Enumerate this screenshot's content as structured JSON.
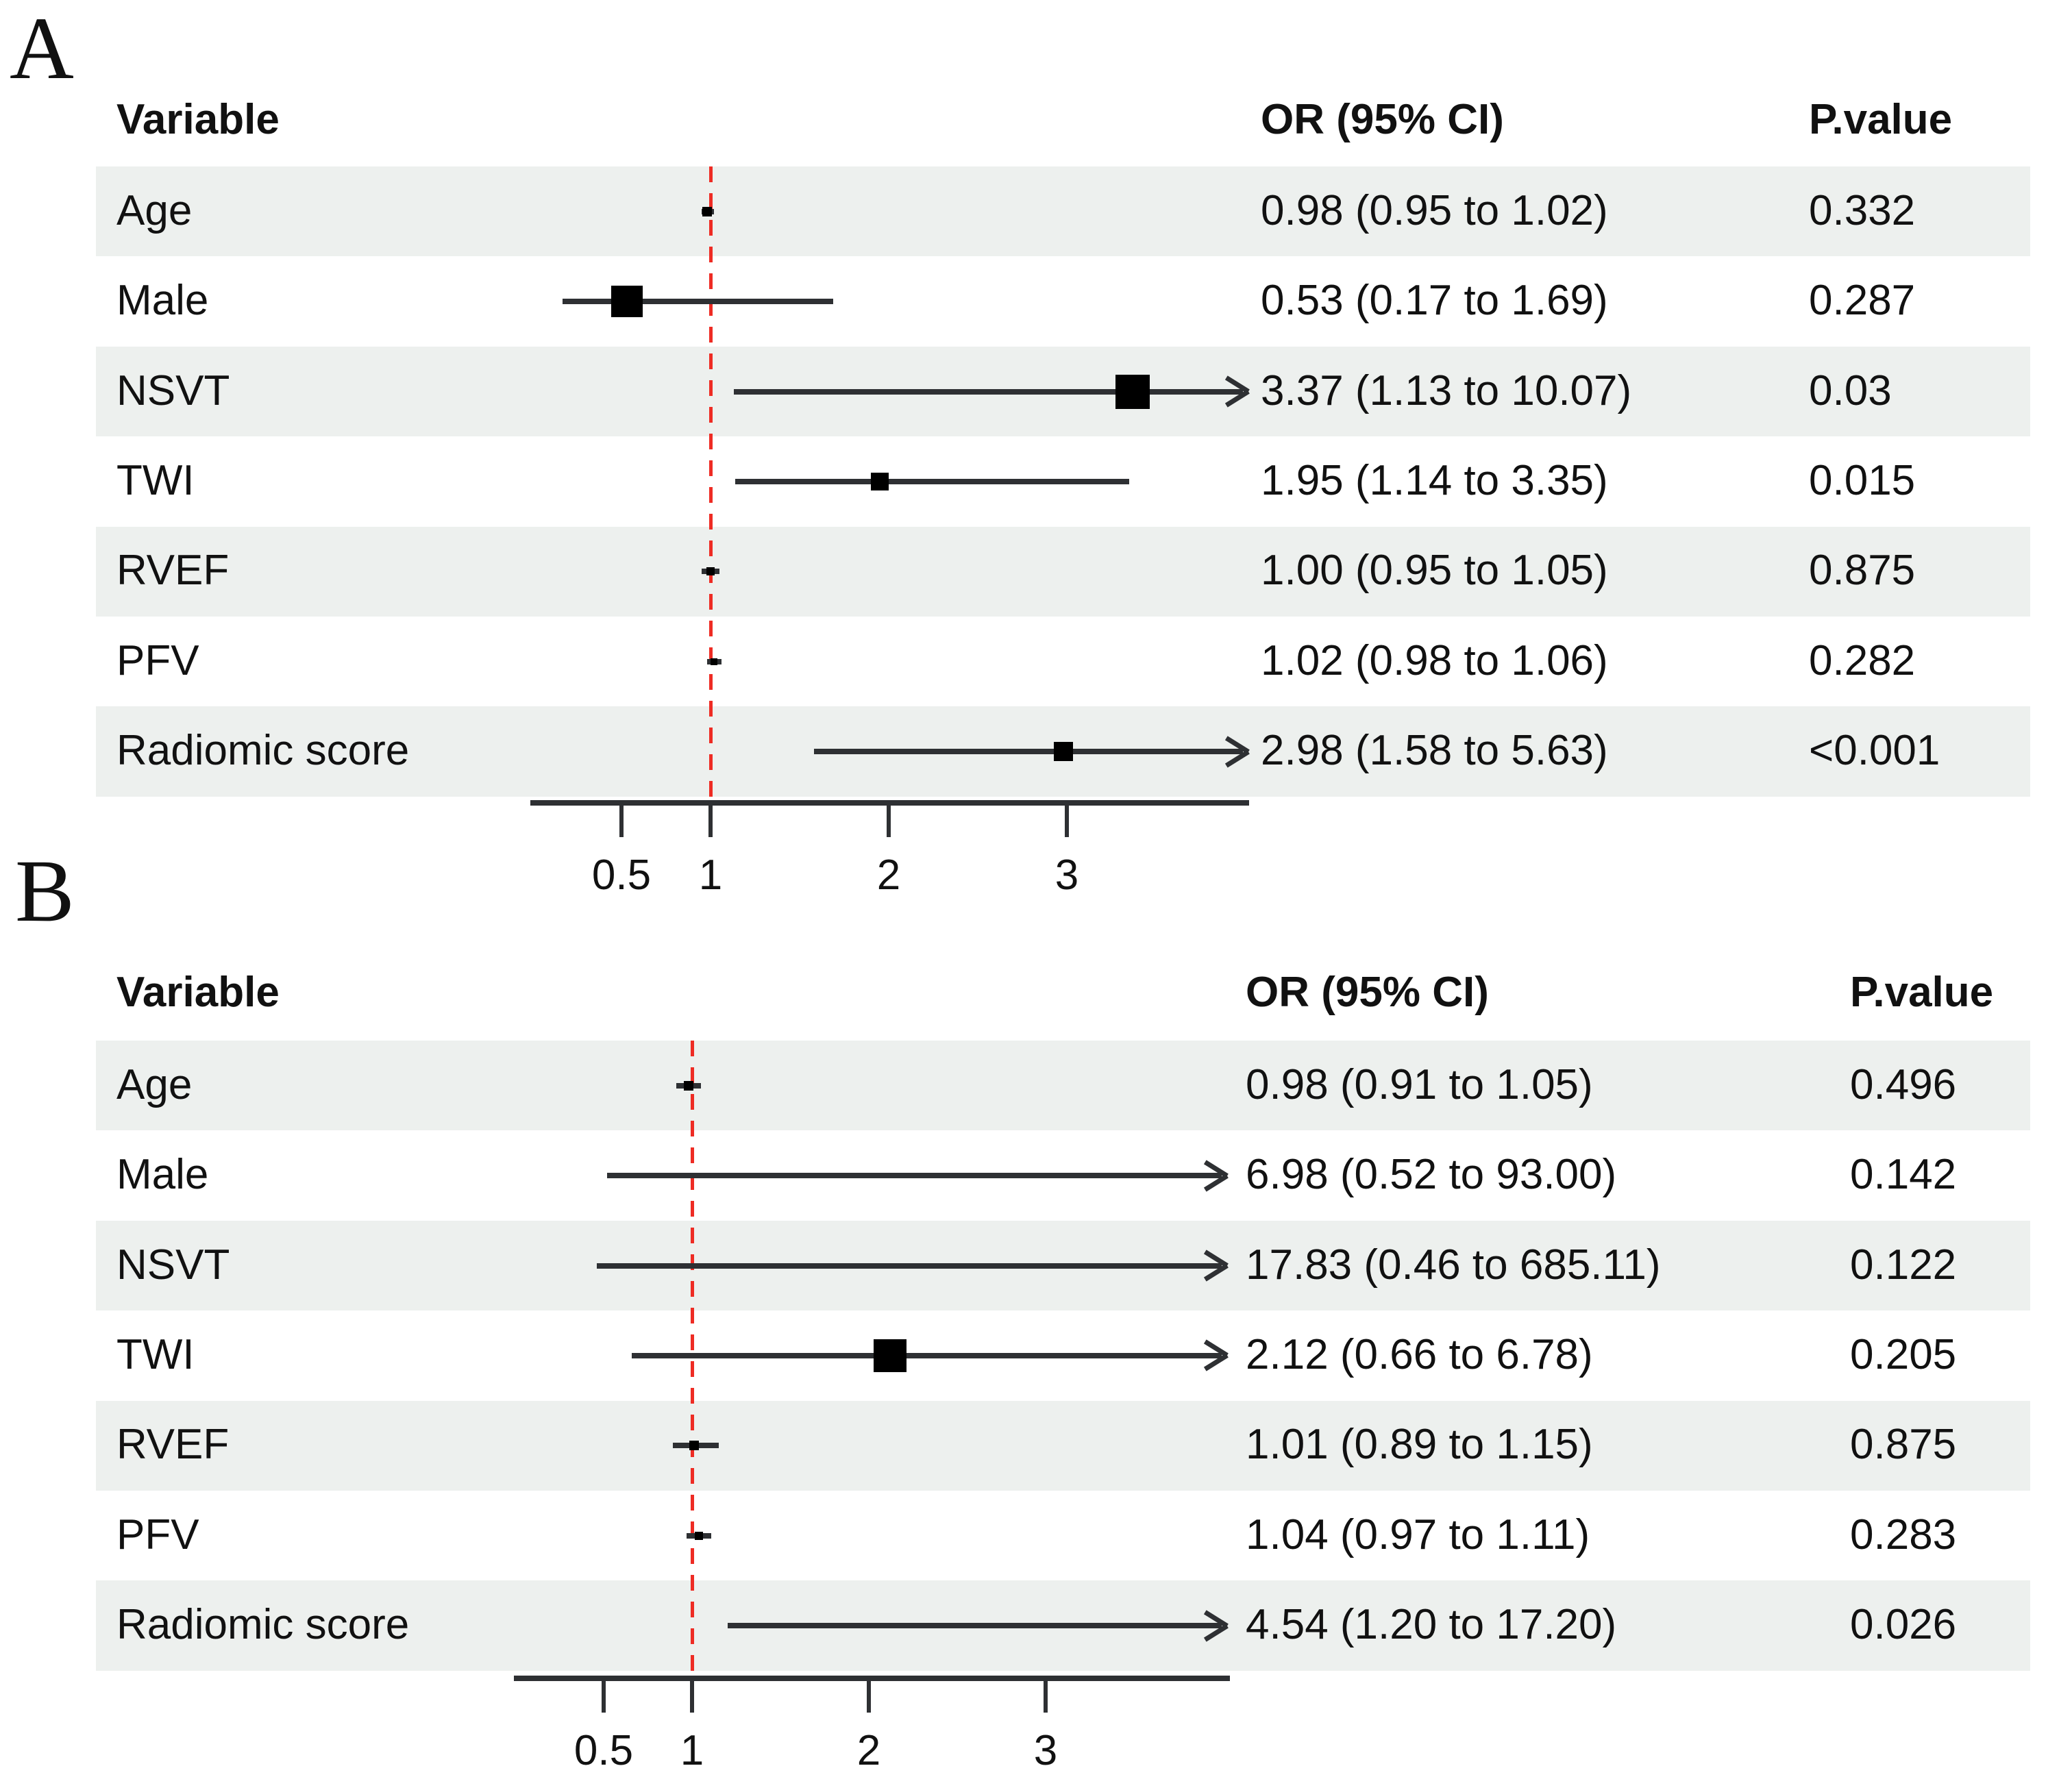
{
  "figure": {
    "background": "#ffffff",
    "stripe_color": "#edf0ee",
    "line_color": "#2e3033",
    "marker_color": "#000000",
    "ref_line_color": "#ee2c24",
    "text_color": "#111111"
  },
  "chart_data": [
    {
      "type": "forest",
      "panel_label": "A",
      "columns": {
        "variable": "Variable",
        "or": "OR (95% CI)",
        "p": "P.value"
      },
      "axis": {
        "scale": "linear",
        "range": [
          0,
          4.02
        ],
        "ticks": [
          0.5,
          1,
          2,
          3
        ],
        "tick_labels": [
          "0.5",
          "1",
          "2",
          "3"
        ],
        "ref_line": 1,
        "grid": false,
        "clip_arrow": true
      },
      "rows": [
        {
          "variable": "Age",
          "est": 0.98,
          "low": 0.95,
          "high": 1.02,
          "or_text": "0.98 (0.95 to 1.02)",
          "p": "0.332",
          "marker_px": 14,
          "shaded": true
        },
        {
          "variable": "Male",
          "est": 0.53,
          "low": 0.17,
          "high": 1.69,
          "or_text": "0.53 (0.17 to 1.69)",
          "p": "0.287",
          "marker_px": 46,
          "shaded": false
        },
        {
          "variable": "NSVT",
          "est": 3.37,
          "low": 1.13,
          "high": 10.07,
          "or_text": "3.37 (1.13 to 10.07)",
          "p": "0.03",
          "marker_px": 50,
          "shaded": true
        },
        {
          "variable": "TWI",
          "est": 1.95,
          "low": 1.14,
          "high": 3.35,
          "or_text": "1.95 (1.14 to 3.35)",
          "p": "0.015",
          "marker_px": 26,
          "shaded": false
        },
        {
          "variable": "RVEF",
          "est": 1.0,
          "low": 0.95,
          "high": 1.05,
          "or_text": "1.00 (0.95 to 1.05)",
          "p": "0.875",
          "marker_px": 12,
          "shaded": true
        },
        {
          "variable": "PFV",
          "est": 1.02,
          "low": 0.98,
          "high": 1.06,
          "or_text": "1.02 (0.98 to 1.06)",
          "p": "0.282",
          "marker_px": 10,
          "shaded": false
        },
        {
          "variable": "Radiomic score",
          "est": 2.98,
          "low": 1.58,
          "high": 5.63,
          "or_text": "2.98 (1.58 to 5.63)",
          "p": "<0.001",
          "marker_px": 28,
          "shaded": true
        }
      ]
    },
    {
      "type": "forest",
      "panel_label": "B",
      "columns": {
        "variable": "Variable",
        "or": "OR (95% CI)",
        "p": "P.value"
      },
      "axis": {
        "scale": "linear",
        "range": [
          0,
          4.02
        ],
        "ticks": [
          0.5,
          1,
          2,
          3
        ],
        "tick_labels": [
          "0.5",
          "1",
          "2",
          "3"
        ],
        "ref_line": 1,
        "grid": false,
        "clip_arrow": true
      },
      "rows": [
        {
          "variable": "Age",
          "est": 0.98,
          "low": 0.91,
          "high": 1.05,
          "or_text": "0.98 (0.91 to 1.05)",
          "p": "0.496",
          "marker_px": 14,
          "shaded": true
        },
        {
          "variable": "Male",
          "est": 6.98,
          "low": 0.52,
          "high": 93.0,
          "or_text": "6.98 (0.52 to 93.00)",
          "p": "0.142",
          "marker_px": 46,
          "shaded": false
        },
        {
          "variable": "NSVT",
          "est": 17.83,
          "low": 0.46,
          "high": 685.11,
          "or_text": "17.83 (0.46 to 685.11)",
          "p": "0.122",
          "marker_px": 46,
          "shaded": true
        },
        {
          "variable": "TWI",
          "est": 2.12,
          "low": 0.66,
          "high": 6.78,
          "or_text": "2.12 (0.66 to 6.78)",
          "p": "0.205",
          "marker_px": 48,
          "shaded": false
        },
        {
          "variable": "RVEF",
          "est": 1.01,
          "low": 0.89,
          "high": 1.15,
          "or_text": "1.01 (0.89 to 1.15)",
          "p": "0.875",
          "marker_px": 14,
          "shaded": true
        },
        {
          "variable": "PFV",
          "est": 1.04,
          "low": 0.97,
          "high": 1.11,
          "or_text": "1.04 (0.97 to 1.11)",
          "p": "0.283",
          "marker_px": 12,
          "shaded": false
        },
        {
          "variable": "Radiomic score",
          "est": 4.54,
          "low": 1.2,
          "high": 17.2,
          "or_text": "4.54 (1.20 to 17.20)",
          "p": "0.026",
          "marker_px": 28,
          "shaded": true
        }
      ]
    }
  ]
}
